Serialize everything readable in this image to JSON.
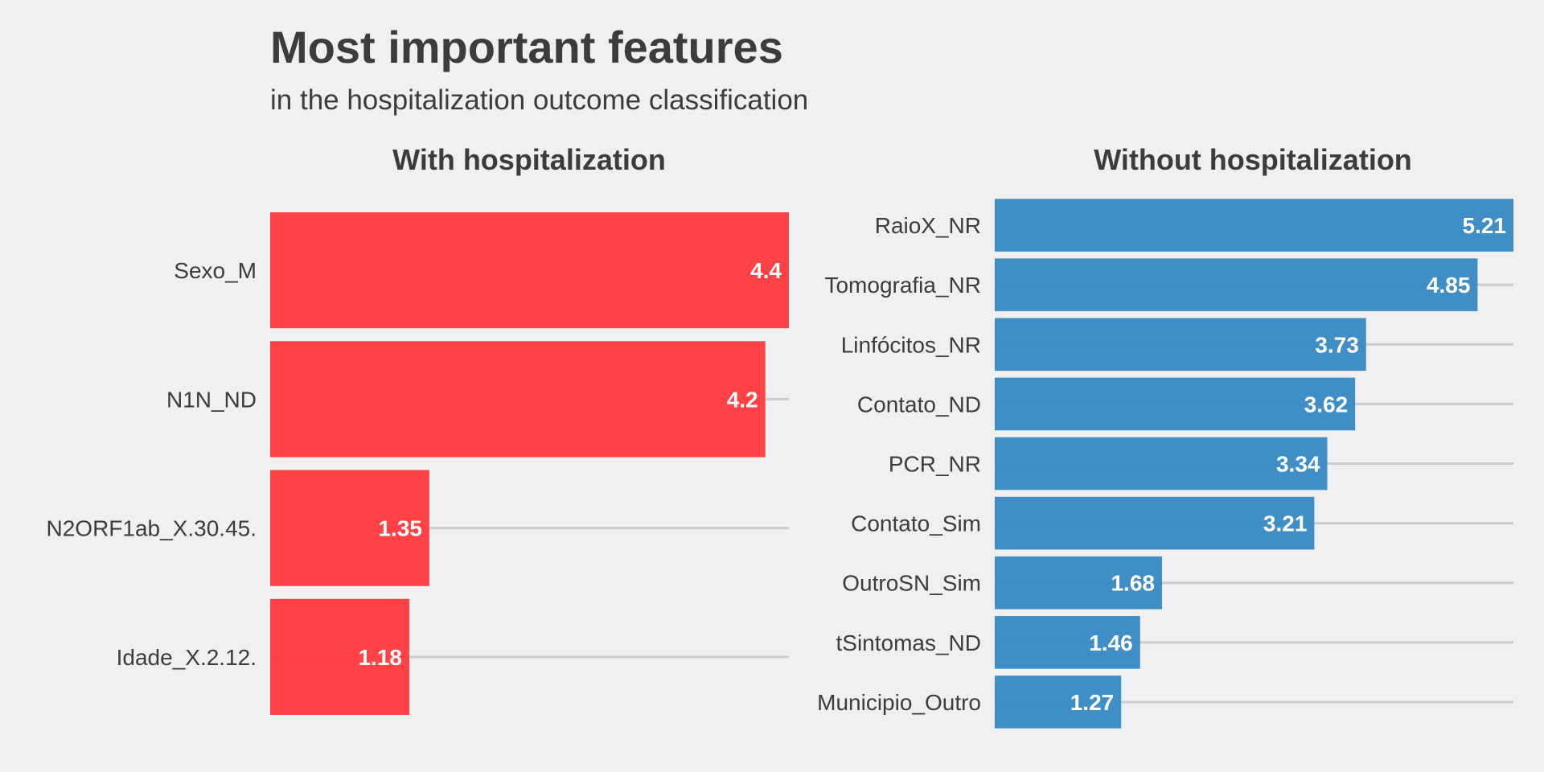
{
  "title": "Most important features",
  "subtitle": "in the hospitalization outcome classification",
  "chart_data": [
    {
      "type": "bar",
      "orientation": "horizontal",
      "title": "With hospitalization",
      "color": "#FF3C3F",
      "categories": [
        "Sexo_M",
        "N1N_ND",
        "N2ORF1ab_X.30.45.",
        "Idade_X.2.12."
      ],
      "values": [
        4.4,
        4.2,
        1.35,
        1.18
      ],
      "value_labels": [
        "4.4",
        "4.2",
        "1.35",
        "1.18"
      ],
      "xlim": [
        0,
        4.4
      ],
      "xlabel": "",
      "ylabel": "",
      "grid": "horizontal",
      "legend": "none"
    },
    {
      "type": "bar",
      "orientation": "horizontal",
      "title": "Without hospitalization",
      "color": "#3A8AC4",
      "categories": [
        "RaioX_NR",
        "Tomografia_NR",
        "Linfócitos_NR",
        "Contato_ND",
        "PCR_NR",
        "Contato_Sim",
        "OutroSN_Sim",
        "tSintomas_ND",
        "Municipio_Outro"
      ],
      "values": [
        5.21,
        4.85,
        3.73,
        3.62,
        3.34,
        3.21,
        1.68,
        1.46,
        1.27
      ],
      "value_labels": [
        "5.21",
        "4.85",
        "3.73",
        "3.62",
        "3.34",
        "3.21",
        "1.68",
        "1.46",
        "1.27"
      ],
      "xlim": [
        0,
        5.21
      ],
      "xlabel": "",
      "ylabel": "",
      "grid": "horizontal",
      "legend": "none"
    }
  ]
}
